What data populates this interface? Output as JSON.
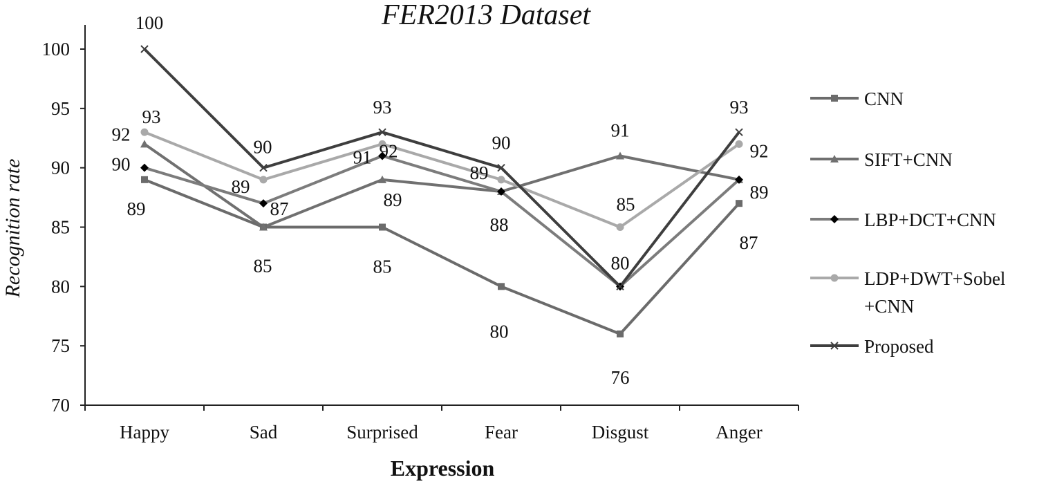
{
  "chart_data": {
    "type": "line",
    "title": "FER2013 Dataset",
    "xlabel": "Expression",
    "ylabel": "Recognition rate",
    "ylim": [
      70,
      100
    ],
    "yticks": [
      "70",
      "75",
      "80",
      "85",
      "90",
      "95",
      "100"
    ],
    "categories": [
      "Happy",
      "Sad",
      "Surprised",
      "Fear",
      "Disgust",
      "Anger"
    ],
    "grid": false,
    "legend_position": "right",
    "series": [
      {
        "name": "CNN",
        "legend_lines": [
          "CNN"
        ],
        "values": [
          89,
          85,
          85,
          80,
          76,
          87
        ],
        "color": "#6b6b6b",
        "marker": "square"
      },
      {
        "name": "SIFT+CNN",
        "legend_lines": [
          "SIFT+CNN"
        ],
        "values": [
          92,
          85,
          89,
          88,
          91,
          89
        ],
        "color": "#707070",
        "marker": "triangle"
      },
      {
        "name": "LBP+DCT+CNN",
        "legend_lines": [
          "LBP+DCT+CNN"
        ],
        "values": [
          90,
          87,
          91,
          88,
          80,
          89
        ],
        "color": "#7c7c7c",
        "marker": "diamond"
      },
      {
        "name": "LDP+DWT+Sobel+CNN",
        "legend_lines": [
          "LDP+DWT+Sobel",
          "+CNN"
        ],
        "values": [
          93,
          89,
          92,
          89,
          85,
          92
        ],
        "color": "#a9a9a9",
        "marker": "circle"
      },
      {
        "name": "Proposed",
        "legend_lines": [
          "Proposed"
        ],
        "values": [
          100,
          90,
          93,
          90,
          80,
          93
        ],
        "color": "#3e3e3e",
        "marker": "x"
      }
    ],
    "data_labels": [
      {
        "series": 4,
        "cat": 0,
        "text": "100"
      },
      {
        "series": 3,
        "cat": 0,
        "text": "93"
      },
      {
        "series": 1,
        "cat": 0,
        "text": "92"
      },
      {
        "series": 2,
        "cat": 0,
        "text": "90"
      },
      {
        "series": 0,
        "cat": 0,
        "text": "89"
      },
      {
        "series": 4,
        "cat": 1,
        "text": "90"
      },
      {
        "series": 3,
        "cat": 1,
        "text": "89"
      },
      {
        "series": 2,
        "cat": 1,
        "text": "87"
      },
      {
        "series": 0,
        "cat": 1,
        "text": "85"
      },
      {
        "series": 4,
        "cat": 2,
        "text": "93"
      },
      {
        "series": 3,
        "cat": 2,
        "text": "92"
      },
      {
        "series": 2,
        "cat": 2,
        "text": "91"
      },
      {
        "series": 1,
        "cat": 2,
        "text": "89"
      },
      {
        "series": 0,
        "cat": 2,
        "text": "85"
      },
      {
        "series": 4,
        "cat": 3,
        "text": "90"
      },
      {
        "series": 3,
        "cat": 3,
        "text": "89"
      },
      {
        "series": 1,
        "cat": 3,
        "text": "88"
      },
      {
        "series": 0,
        "cat": 3,
        "text": "80"
      },
      {
        "series": 1,
        "cat": 4,
        "text": "91"
      },
      {
        "series": 3,
        "cat": 4,
        "text": "85"
      },
      {
        "series": 4,
        "cat": 4,
        "text": "80"
      },
      {
        "series": 0,
        "cat": 4,
        "text": "76"
      },
      {
        "series": 4,
        "cat": 5,
        "text": "93"
      },
      {
        "series": 3,
        "cat": 5,
        "text": "92"
      },
      {
        "series": 2,
        "cat": 5,
        "text": "89"
      },
      {
        "series": 0,
        "cat": 5,
        "text": "87"
      }
    ]
  }
}
